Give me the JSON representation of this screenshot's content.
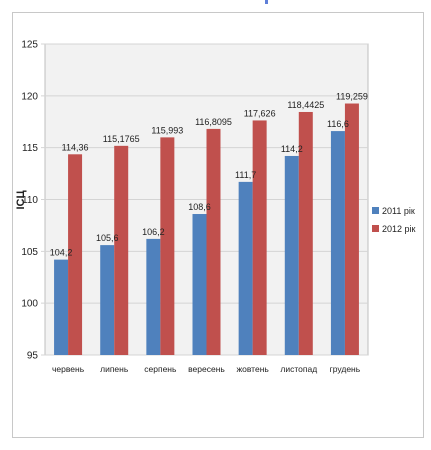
{
  "chart_data": {
    "type": "bar",
    "title": "",
    "xlabel": "",
    "ylabel": "ІСЦ",
    "ylim": [
      95,
      125
    ],
    "yticks": [
      "95",
      "100",
      "105",
      "110",
      "115",
      "120",
      "125"
    ],
    "categories": [
      "червень",
      "липень",
      "серпень",
      "вересень",
      "жовтень",
      "листопад",
      "грудень"
    ],
    "series": [
      {
        "name": "2011 рік",
        "color": "#4f81bd",
        "values": [
          104.2,
          105.6,
          106.2,
          108.6,
          111.7,
          114.2,
          116.6
        ],
        "labels": [
          "104,2",
          "105,6",
          "106,2",
          "108,6",
          "111,7",
          "114,2",
          "116,6"
        ]
      },
      {
        "name": "2012 рік",
        "color": "#c0504d",
        "values": [
          114.36,
          115.1765,
          115.993,
          116.8095,
          117.626,
          118.4425,
          119.259
        ],
        "labels": [
          "114,36",
          "115,1765",
          "115,993",
          "116,8095",
          "117,626",
          "118,4425",
          "119,259"
        ]
      }
    ],
    "grid": true,
    "legend_position": "right",
    "plot_background": "#f2f2f2",
    "gridline_color": "#d4d4d4"
  }
}
